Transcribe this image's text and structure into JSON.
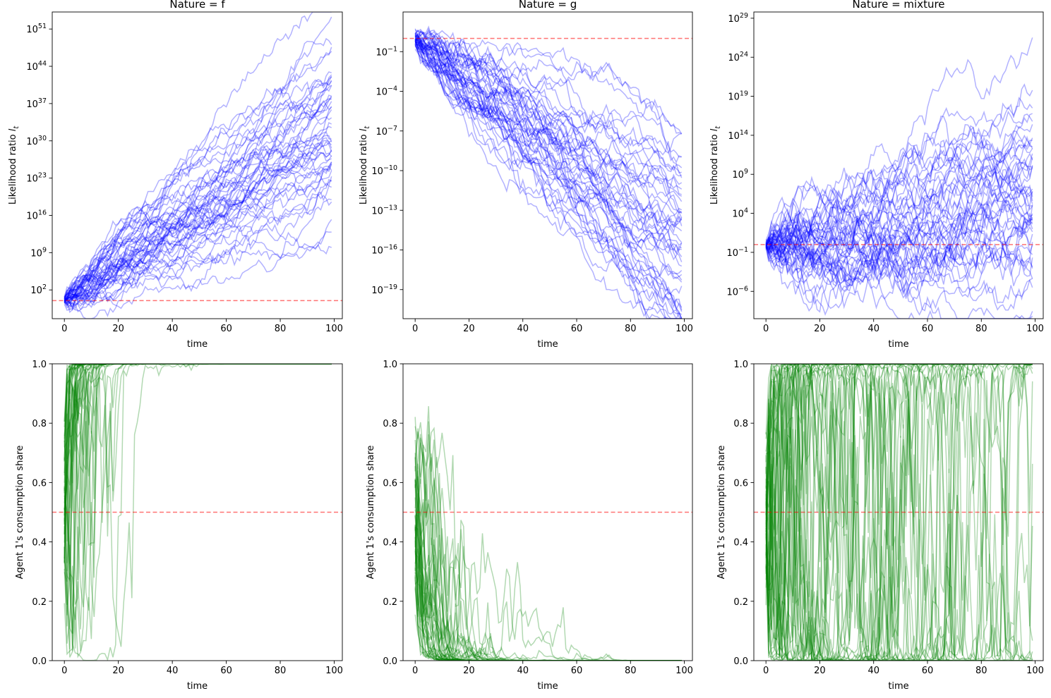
{
  "chart_data": [
    {
      "type": "line",
      "title": "Nature = f",
      "xlabel": "time",
      "ylabel_main": "Likelihood ratio ",
      "ylabel_sym": "l",
      "ylabel_sub": "t",
      "yscale": "log",
      "xlim": [
        -4.5,
        103
      ],
      "ylim_log10": [
        -3.4,
        54.2
      ],
      "x_ticks": [
        0,
        20,
        40,
        60,
        80,
        100
      ],
      "y_ticks": [
        {
          "base": "10",
          "exp": "2",
          "log": 2
        },
        {
          "base": "10",
          "exp": "9",
          "log": 9
        },
        {
          "base": "10",
          "exp": "16",
          "log": 16
        },
        {
          "base": "10",
          "exp": "23",
          "log": 23
        },
        {
          "base": "10",
          "exp": "30",
          "log": 30
        },
        {
          "base": "10",
          "exp": "37",
          "log": 37
        },
        {
          "base": "10",
          "exp": "44",
          "log": 44
        },
        {
          "base": "10",
          "exp": "51",
          "log": 51
        }
      ],
      "hline_log10": 0,
      "line_color": "#0000ff",
      "ref_color": "#ff0000",
      "paths": {
        "count": 50,
        "steps": 100,
        "drift_log10_per_step": 0.32,
        "volatility_log10": 0.72,
        "seed": 11
      }
    },
    {
      "type": "line",
      "title": "Nature = g",
      "xlabel": "time",
      "ylabel_main": "Likelihood ratio ",
      "ylabel_sym": "l",
      "ylabel_sub": "t",
      "yscale": "log",
      "xlim": [
        -4.5,
        103
      ],
      "ylim_log10": [
        -21.2,
        2.0
      ],
      "x_ticks": [
        0,
        20,
        40,
        60,
        80,
        100
      ],
      "y_ticks": [
        {
          "base": "10",
          "exp": "−19",
          "log": -19
        },
        {
          "base": "10",
          "exp": "−16",
          "log": -16
        },
        {
          "base": "10",
          "exp": "−13",
          "log": -13
        },
        {
          "base": "10",
          "exp": "−10",
          "log": -10
        },
        {
          "base": "10",
          "exp": "−7",
          "log": -7
        },
        {
          "base": "10",
          "exp": "−4",
          "log": -4
        },
        {
          "base": "10",
          "exp": "−1",
          "log": -1
        }
      ],
      "hline_log10": 0,
      "line_color": "#0000ff",
      "ref_color": "#ff0000",
      "paths": {
        "count": 50,
        "steps": 100,
        "drift_log10_per_step": -0.16,
        "volatility_log10": 0.36,
        "seed": 23
      }
    },
    {
      "type": "line",
      "title": "Nature = mixture",
      "xlabel": "time",
      "ylabel_main": "Likelihood ratio ",
      "ylabel_sym": "l",
      "ylabel_sub": "t",
      "yscale": "log",
      "xlim": [
        -4.5,
        103
      ],
      "ylim_log10": [
        -9.5,
        29.8
      ],
      "x_ticks": [
        0,
        20,
        40,
        60,
        80,
        100
      ],
      "y_ticks": [
        {
          "base": "10",
          "exp": "−6",
          "log": -6
        },
        {
          "base": "10",
          "exp": "−1",
          "log": -1
        },
        {
          "base": "10",
          "exp": "4",
          "log": 4
        },
        {
          "base": "10",
          "exp": "9",
          "log": 9
        },
        {
          "base": "10",
          "exp": "14",
          "log": 14
        },
        {
          "base": "10",
          "exp": "19",
          "log": 19
        },
        {
          "base": "10",
          "exp": "24",
          "log": 24
        },
        {
          "base": "10",
          "exp": "29",
          "log": 29
        }
      ],
      "hline_log10": 0,
      "line_color": "#0000ff",
      "ref_color": "#ff0000",
      "paths": {
        "count": 50,
        "steps": 100,
        "drift_log10_per_step": 0.06,
        "volatility_log10": 0.95,
        "seed": 37
      }
    },
    {
      "type": "line",
      "title": "",
      "xlabel": "time",
      "ylabel_main": "Agent 1's consumption share",
      "ylabel_sym": "",
      "ylabel_sub": "",
      "yscale": "linear",
      "xlim": [
        -4.5,
        103
      ],
      "ylim": [
        0.0,
        1.0
      ],
      "x_ticks": [
        0,
        20,
        40,
        60,
        80,
        100
      ],
      "y_ticks": [
        "0.0",
        "0.2",
        "0.4",
        "0.6",
        "0.8",
        "1.0"
      ],
      "hline": 0.5,
      "line_color": "#008000",
      "ref_color": "#ff0000",
      "paths": {
        "count": 50,
        "steps": 100,
        "source_panel": 0,
        "sensitivity": 0.9
      }
    },
    {
      "type": "line",
      "title": "",
      "xlabel": "time",
      "ylabel_main": "Agent 1's consumption share",
      "ylabel_sym": "",
      "ylabel_sub": "",
      "yscale": "linear",
      "xlim": [
        -4.5,
        103
      ],
      "ylim": [
        0.0,
        1.0
      ],
      "x_ticks": [
        0,
        20,
        40,
        60,
        80,
        100
      ],
      "y_ticks": [
        "0.0",
        "0.2",
        "0.4",
        "0.6",
        "0.8",
        "1.0"
      ],
      "hline": 0.5,
      "line_color": "#008000",
      "ref_color": "#ff0000",
      "paths": {
        "count": 50,
        "steps": 100,
        "source_panel": 1,
        "sensitivity": 0.9
      }
    },
    {
      "type": "line",
      "title": "",
      "xlabel": "time",
      "ylabel_main": "Agent 1's consumption share",
      "ylabel_sym": "",
      "ylabel_sub": "",
      "yscale": "linear",
      "xlim": [
        -4.5,
        103
      ],
      "ylim": [
        0.0,
        1.0
      ],
      "x_ticks": [
        0,
        20,
        40,
        60,
        80,
        100
      ],
      "y_ticks": [
        "0.0",
        "0.2",
        "0.4",
        "0.6",
        "0.8",
        "1.0"
      ],
      "hline": 0.5,
      "line_color": "#008000",
      "ref_color": "#ff0000",
      "paths": {
        "count": 50,
        "steps": 100,
        "source_panel": 2,
        "sensitivity": 0.9
      }
    }
  ]
}
